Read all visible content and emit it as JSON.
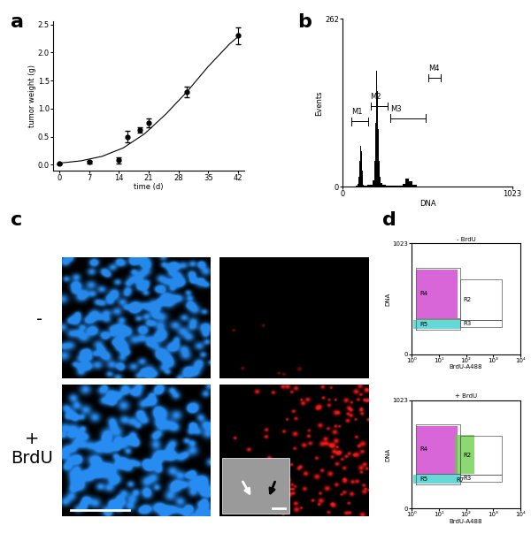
{
  "panel_labels": [
    "a",
    "b",
    "c",
    "d"
  ],
  "chart_data": [
    {
      "type": "line",
      "xlabel": "time (d)",
      "ylabel": "tumor weight (g)",
      "xlim": [
        -1.5,
        43.5
      ],
      "ylim": [
        -0.1,
        2.55
      ],
      "xticks": [
        0,
        7,
        14,
        21,
        28,
        35,
        42
      ],
      "yticks": [
        {
          "value": 0,
          "label": "0.0"
        },
        {
          "value": 0.5,
          "label": "0.5"
        },
        {
          "value": 1,
          "label": "1.0"
        },
        {
          "value": 1.5,
          "label": "1.5"
        },
        {
          "value": 2,
          "label": "2.0"
        },
        {
          "value": 2.5,
          "label": "2.5"
        }
      ],
      "series": [
        {
          "type": "scatter",
          "marker": "circle",
          "color": "#000000",
          "x": [
            0,
            7,
            14,
            16,
            19,
            21,
            30,
            42
          ],
          "values": [
            0.02,
            0.05,
            0.08,
            0.5,
            0.62,
            0.75,
            1.3,
            2.3
          ],
          "errors": [
            0.01,
            0.02,
            0.05,
            0.1,
            0.05,
            0.08,
            0.1,
            0.15
          ]
        },
        {
          "type": "line",
          "color": "#000000",
          "x": [
            0,
            5,
            10,
            15,
            20,
            25,
            30,
            35,
            40,
            42
          ],
          "values": [
            0.03,
            0.07,
            0.15,
            0.3,
            0.55,
            0.9,
            1.3,
            1.75,
            2.15,
            2.28
          ]
        }
      ]
    },
    {
      "type": "histogram",
      "xlabel": "DNA",
      "ylabel": "Events",
      "color": "#000000",
      "xlim": [
        0,
        1023
      ],
      "ylim": [
        0,
        262
      ],
      "xticks": [
        0,
        1023
      ],
      "yticks": [
        0,
        262
      ],
      "bins": [
        0,
        80,
        90,
        95,
        100,
        105,
        110,
        115,
        120,
        125,
        130,
        150,
        180,
        190,
        195,
        200,
        205,
        210,
        215,
        220,
        225,
        230,
        240,
        260,
        300,
        360,
        380,
        400,
        420,
        450,
        1023
      ],
      "counts": [
        0,
        2,
        5,
        15,
        40,
        64,
        55,
        25,
        8,
        3,
        2,
        3,
        10,
        40,
        100,
        160,
        181,
        150,
        90,
        40,
        15,
        6,
        3,
        2,
        2,
        5,
        13,
        8,
        3,
        0
      ],
      "annotations": [
        {
          "text": "M1",
          "range": [
            52,
            157
          ],
          "y": 102
        },
        {
          "text": "M2",
          "range": [
            168,
            273
          ],
          "y": 126
        },
        {
          "text": "M3",
          "range": [
            290,
            500
          ],
          "y": 107
        },
        {
          "text": "M4",
          "range": [
            515,
            590
          ],
          "y": 170
        }
      ]
    },
    {
      "type": "scatter",
      "title": "- BrdU",
      "xlabel": "BrdU-A488",
      "ylabel": "DNA",
      "log": "x",
      "xlim": [
        1,
        10000
      ],
      "ylim": [
        0,
        1023
      ],
      "xticks": [
        {
          "value": 1,
          "label": "10⁰"
        },
        {
          "value": 10,
          "label": "10¹"
        },
        {
          "value": 100,
          "label": "10²"
        },
        {
          "value": 1000,
          "label": "10³"
        },
        {
          "value": 10000,
          "label": "10⁴"
        }
      ],
      "yticks": [
        0,
        1023
      ],
      "populations": [
        {
          "color": "#cc33cc",
          "x": [
            1.5,
            50
          ],
          "y": [
            330,
            780
          ]
        },
        {
          "color": "#33cccc",
          "x": [
            1.2,
            60
          ],
          "y": [
            235,
            320
          ]
        }
      ],
      "gates": [
        {
          "label": "R4",
          "x": [
            1.5,
            63
          ],
          "y": [
            330,
            800
          ]
        },
        {
          "label": "R5",
          "x": [
            1.5,
            63
          ],
          "y": [
            230,
            325
          ]
        },
        {
          "label": "R2",
          "x": [
            63,
            2000
          ],
          "y": [
            320,
            690
          ]
        },
        {
          "label": "R3",
          "x": [
            63,
            2000
          ],
          "y": [
            255,
            318
          ]
        }
      ],
      "annotations": []
    },
    {
      "type": "scatter",
      "title": "+ BrdU",
      "xlabel": "BrdU-A488",
      "ylabel": "DNA",
      "log": "x",
      "xlim": [
        1,
        10000
      ],
      "ylim": [
        0,
        1023
      ],
      "xticks": [
        {
          "value": 1,
          "label": "10⁰"
        },
        {
          "value": 10,
          "label": "10¹"
        },
        {
          "value": 100,
          "label": "10²"
        },
        {
          "value": 1000,
          "label": "10³"
        },
        {
          "value": 10000,
          "label": "10⁴"
        }
      ],
      "yticks": [
        0,
        1023
      ],
      "populations": [
        {
          "color": "#cc33cc",
          "x": [
            1.5,
            50
          ],
          "y": [
            330,
            780
          ]
        },
        {
          "color": "#33cccc",
          "x": [
            1.2,
            60
          ],
          "y": [
            235,
            320
          ]
        },
        {
          "color": "#66cc44",
          "x": [
            40,
            200
          ],
          "y": [
            330,
            700
          ]
        }
      ],
      "gates": [
        {
          "label": "R4",
          "x": [
            1.5,
            63
          ],
          "y": [
            330,
            800
          ]
        },
        {
          "label": "R5",
          "x": [
            1.5,
            63
          ],
          "y": [
            230,
            325
          ]
        },
        {
          "label": "R2",
          "x": [
            63,
            2000
          ],
          "y": [
            320,
            690
          ]
        },
        {
          "label": "R3",
          "x": [
            63,
            2000
          ],
          "y": [
            255,
            318
          ]
        }
      ],
      "annotations": [
        {
          "text": "R7",
          "x": 45,
          "y": 270
        }
      ]
    }
  ],
  "micrographs": {
    "row_labels": [
      "-",
      "+\nBrdU"
    ]
  }
}
